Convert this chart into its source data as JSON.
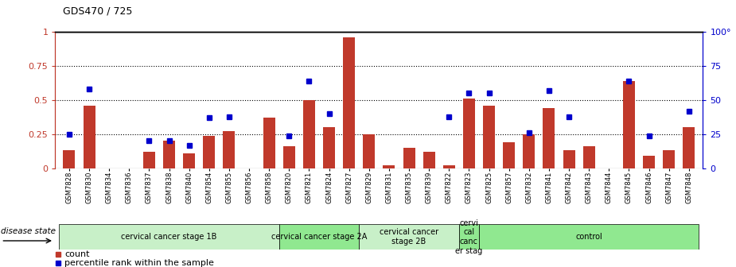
{
  "title": "GDS470 / 725",
  "samples": [
    "GSM7828",
    "GSM7830",
    "GSM7834",
    "GSM7836",
    "GSM7837",
    "GSM7838",
    "GSM7840",
    "GSM7854",
    "GSM7855",
    "GSM7856",
    "GSM7858",
    "GSM7820",
    "GSM7821",
    "GSM7824",
    "GSM7827",
    "GSM7829",
    "GSM7831",
    "GSM7835",
    "GSM7839",
    "GSM7822",
    "GSM7823",
    "GSM7825",
    "GSM7857",
    "GSM7832",
    "GSM7841",
    "GSM7842",
    "GSM7843",
    "GSM7844",
    "GSM7845",
    "GSM7846",
    "GSM7847",
    "GSM7848"
  ],
  "counts": [
    0.13,
    0.46,
    0.0,
    0.0,
    0.12,
    0.2,
    0.11,
    0.24,
    0.27,
    0.0,
    0.37,
    0.16,
    0.5,
    0.3,
    0.96,
    0.25,
    0.02,
    0.15,
    0.12,
    0.02,
    0.51,
    0.46,
    0.19,
    0.25,
    0.44,
    0.13,
    0.16,
    0.0,
    0.64,
    0.09,
    0.13,
    0.3
  ],
  "percentiles": [
    0.25,
    0.58,
    0.0,
    0.0,
    0.2,
    0.2,
    0.17,
    0.37,
    0.38,
    0.0,
    0.0,
    0.24,
    0.64,
    0.4,
    0.0,
    0.0,
    0.0,
    0.0,
    0.0,
    0.38,
    0.55,
    0.55,
    0.0,
    0.26,
    0.57,
    0.38,
    0.0,
    0.0,
    0.64,
    0.24,
    0.0,
    0.42
  ],
  "groups": [
    {
      "label": "cervical cancer stage 1B",
      "start": 0,
      "end": 11,
      "color": "#c8f0c8"
    },
    {
      "label": "cervical cancer stage 2A",
      "start": 11,
      "end": 15,
      "color": "#90e890"
    },
    {
      "label": "cervical cancer\nstage 2B",
      "start": 15,
      "end": 20,
      "color": "#c8f0c8"
    },
    {
      "label": "cervi\ncal\ncanc\ner stag",
      "start": 20,
      "end": 21,
      "color": "#90e890"
    },
    {
      "label": "control",
      "start": 21,
      "end": 32,
      "color": "#90e890"
    }
  ],
  "bar_color": "#c0392b",
  "dot_color": "#0000cc",
  "left_axis_color": "#c0392b",
  "right_axis_color": "#0000cc",
  "ylim_left": [
    0,
    1.0
  ],
  "ylim_right": [
    0,
    100
  ],
  "yticks_left": [
    0,
    0.25,
    0.5,
    0.75,
    1.0
  ],
  "ytick_labels_left": [
    "0",
    "0.25",
    "0.5",
    "0.75",
    "1"
  ],
  "yticks_right": [
    0,
    25,
    50,
    75,
    100
  ],
  "ytick_labels_right": [
    "0",
    "25",
    "50",
    "75",
    "100°"
  ],
  "disease_state_label": "disease state",
  "legend_items": [
    {
      "label": "count",
      "color": "#c0392b",
      "marker": "s"
    },
    {
      "label": "percentile rank within the sample",
      "color": "#0000cc",
      "marker": "s"
    }
  ]
}
